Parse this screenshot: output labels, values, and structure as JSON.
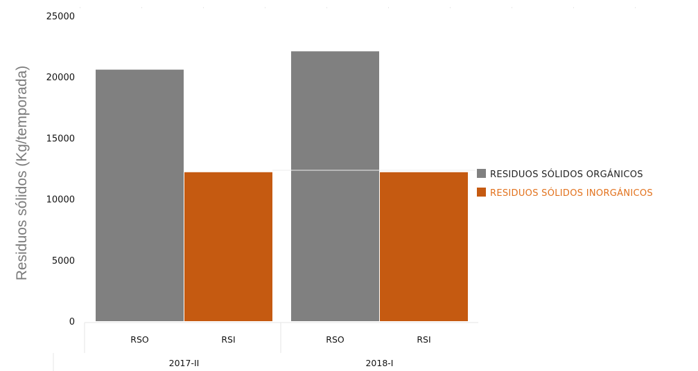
{
  "chart_data": {
    "type": "bar",
    "ylabel": "Residuos sólidos (Kg/temporada)",
    "ylim": [
      0,
      25000
    ],
    "yticks": [
      0,
      5000,
      10000,
      15000,
      20000,
      25000
    ],
    "groups": [
      {
        "label": "2017-II",
        "bars": [
          {
            "label": "RSO",
            "series": "RESIDUOS SÓLIDOS ORGÁNICOS",
            "value": 20600
          },
          {
            "label": "RSI",
            "series": "RESIDUOS SÓLIDOS INORGÁNICOS",
            "value": 12200
          }
        ]
      },
      {
        "label": "2018-I",
        "bars": [
          {
            "label": "RSO",
            "series": "RESIDUOS SÓLIDOS ORGÁNICOS",
            "value": 22100
          },
          {
            "label": "RSI",
            "series": "RESIDUOS SÓLIDOS INORGÁNICOS",
            "value": 12200
          }
        ]
      }
    ],
    "series": [
      {
        "name": "RESIDUOS SÓLIDOS ORGÁNICOS",
        "color": "#808080",
        "text_color": "#222222"
      },
      {
        "name": "RESIDUOS SÓLIDOS INORGÁNICOS",
        "color": "#c55a11",
        "text_color": "#e2711c"
      }
    ],
    "legend": "right",
    "grid": false
  }
}
